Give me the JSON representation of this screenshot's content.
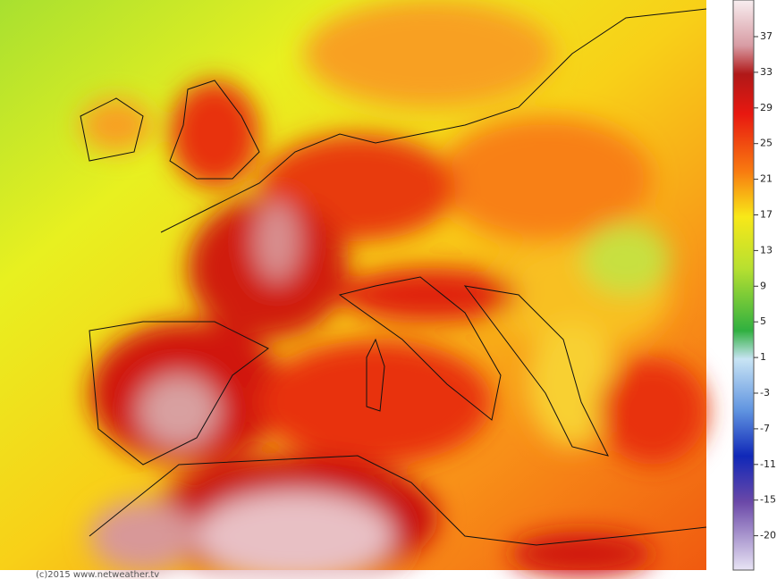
{
  "colorbar": {
    "ticks": [
      37,
      33,
      29,
      25,
      21,
      17,
      13,
      9,
      5,
      1,
      -3,
      -7,
      -11,
      -15,
      -20
    ]
  },
  "footer": {
    "credit": "(c)2015 www.netweather.tv"
  }
}
